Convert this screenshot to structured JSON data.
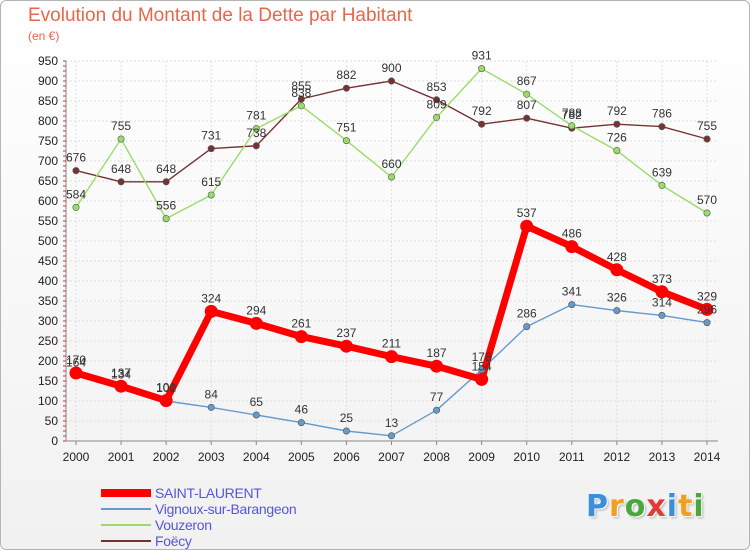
{
  "chart_data": {
    "type": "line",
    "title": "Evolution du Montant de la Dette par Habitant",
    "subtitle": "(en €)",
    "xlabel": "",
    "ylabel": "",
    "ylim": [
      0,
      950
    ],
    "yticks": [
      0,
      50,
      100,
      150,
      200,
      250,
      300,
      350,
      400,
      450,
      500,
      550,
      600,
      650,
      700,
      750,
      800,
      850,
      900,
      950
    ],
    "grid": true,
    "legend_position": "bottom-left",
    "x": [
      "2000",
      "2001",
      "2002",
      "2003",
      "2004",
      "2005",
      "2006",
      "2007",
      "2008",
      "2009",
      "2010",
      "2011",
      "2012",
      "2013",
      "2014"
    ],
    "series": [
      {
        "name": "SAINT-LAURENT",
        "color": "#ff0000",
        "values": [
          170,
          137,
          101,
          324,
          294,
          261,
          237,
          211,
          187,
          154,
          537,
          486,
          428,
          373,
          329
        ]
      },
      {
        "name": "Vignoux-sur-Barangeon",
        "color": "#6699cc",
        "values": [
          164,
          134,
          100,
          84,
          65,
          46,
          25,
          13,
          77,
          178,
          286,
          341,
          326,
          314,
          296
        ]
      },
      {
        "name": "Vouzeron",
        "color": "#99dd66",
        "values": [
          584,
          755,
          556,
          615,
          781,
          838,
          751,
          660,
          809,
          931,
          867,
          788,
          726,
          639,
          570
        ]
      },
      {
        "name": "Foëcy",
        "color": "#773333",
        "values": [
          676,
          648,
          648,
          731,
          738,
          855,
          882,
          900,
          853,
          792,
          807,
          782,
          792,
          786,
          755
        ]
      }
    ]
  },
  "logo": {
    "letters": [
      "P",
      "r",
      "o",
      "x",
      "i",
      "t",
      "i"
    ],
    "colors": [
      "#3a8fd8",
      "#f0a020",
      "#4aa83a",
      "#e03a3a",
      "#3a8fd8",
      "#f0a020",
      "#4aa83a"
    ]
  }
}
